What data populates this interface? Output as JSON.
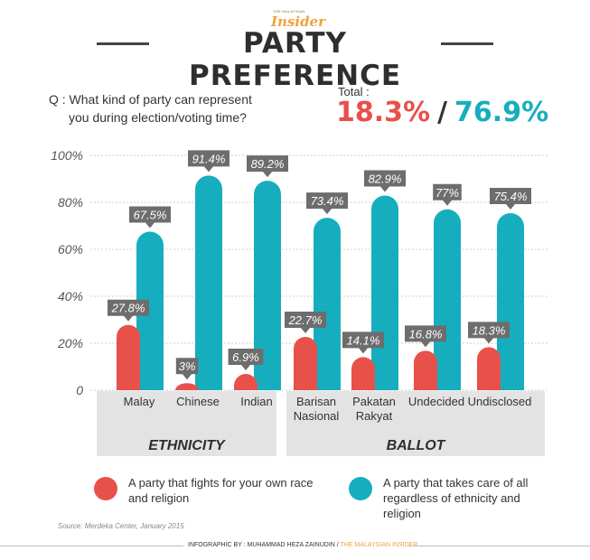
{
  "header": {
    "logo_small": "THE MALAYSIAN",
    "logo_big": "Insider",
    "title": "PARTY PREFERENCE"
  },
  "question": {
    "line1": "Q : What kind of party can represent",
    "line2": "you during election/voting time?"
  },
  "total": {
    "label": "Total :",
    "red_value": "18.3%",
    "separator": "/",
    "teal_value": "76.9%"
  },
  "colors": {
    "red": "#e8504a",
    "teal": "#16aebf",
    "label_bg": "#6d6d6d",
    "group_bg": "#e3e3e3"
  },
  "chart_data": {
    "type": "bar",
    "ylim": [
      0,
      100
    ],
    "yticks": [
      0,
      20,
      40,
      60,
      80,
      100
    ],
    "ytick_labels": [
      "0",
      "20%",
      "40%",
      "60%",
      "80%",
      "100%"
    ],
    "categories": [
      [
        "Malay"
      ],
      [
        "Chinese"
      ],
      [
        "Indian"
      ],
      [
        "Barisan",
        "Nasional"
      ],
      [
        "Pakatan",
        "Rakyat"
      ],
      [
        "Undecided"
      ],
      [
        "Undisclosed"
      ]
    ],
    "groups": [
      {
        "name": "ETHNICITY",
        "categories": [
          0,
          1,
          2
        ]
      },
      {
        "name": "BALLOT",
        "categories": [
          3,
          4,
          5,
          6
        ]
      }
    ],
    "series": [
      {
        "name": "A party that fights for your own race and religion",
        "values": [
          27.8,
          3,
          6.9,
          22.7,
          14.1,
          16.8,
          18.3
        ],
        "labels": [
          "27.8%",
          "3%",
          "6.9%",
          "22.7%",
          "14.1%",
          "16.8%",
          "18.3%"
        ]
      },
      {
        "name": "A party that takes care of all regardless of ethnicity and religion",
        "values": [
          67.5,
          91.4,
          89.2,
          73.4,
          82.9,
          77,
          75.4
        ],
        "labels": [
          "67.5%",
          "91.4%",
          "89.2%",
          "73.4%",
          "82.9%",
          "77%",
          "75.4%"
        ]
      }
    ]
  },
  "legend": {
    "red_line1": "A party that fights for your own race",
    "red_line2": "and religion",
    "teal_line1": "A party that takes care of all",
    "teal_line2": "regardless of ethnicity and",
    "teal_line3": "religion"
  },
  "source": "Source: Merdeka Center, January 2015",
  "footer": {
    "credit": "INFOGRAPHIC BY : MUHAMMAD HEZA ZAINUDIN / ",
    "brand": "THE MALAYSIAN INSIDER"
  }
}
